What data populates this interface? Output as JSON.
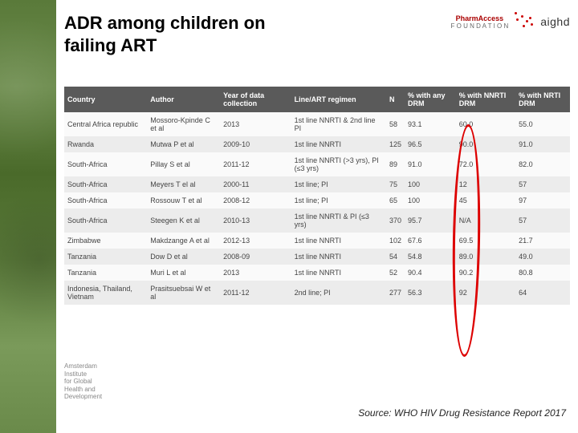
{
  "title": "ADR among children on\nfailing ART",
  "logos": {
    "pharm1": "PharmAccess",
    "pharm2": "F O U N D A T I O N",
    "aighd": "aighd"
  },
  "table": {
    "columns": [
      "Country",
      "Author",
      "Year of data collection",
      "Line/ART regimen",
      "N",
      "% with any DRM",
      "% with NNRTI DRM",
      "% with NRTI DRM"
    ],
    "rows": [
      [
        "Central Africa republic",
        "Mossoro-Kpinde C et al",
        "2013",
        "1st line NNRTI & 2nd line PI",
        "58",
        "93.1",
        "60.0",
        "55.0"
      ],
      [
        "Rwanda",
        "Mutwa P et al",
        "2009-10",
        "1st line NNRTI",
        "125",
        "96.5",
        "90.0",
        "91.0"
      ],
      [
        "South-Africa",
        "Pillay S et al",
        "2011-12",
        "1st line NNRTI (>3 yrs), PI (≤3 yrs)",
        "89",
        "91.0",
        "72.0",
        "82.0"
      ],
      [
        "South-Africa",
        "Meyers T el al",
        "2000-11",
        "1st line; PI",
        "75",
        "100",
        "12",
        "57"
      ],
      [
        "South-Africa",
        "Rossouw T et al",
        "2008-12",
        "1st line; PI",
        "65",
        "100",
        "45",
        "97"
      ],
      [
        "South-Africa",
        "Steegen K et al",
        "2010-13",
        "1st line NNRTI & PI (≤3 yrs)",
        "370",
        "95.7",
        "N/A",
        "57"
      ],
      [
        "Zimbabwe",
        "Makdzange A et al",
        "2012-13",
        "1st line NNRTI",
        "102",
        "67.6",
        "69.5",
        "21.7"
      ],
      [
        "Tanzania",
        "Dow D et al",
        "2008-09",
        "1st line NNRTI",
        "54",
        "54.8",
        "89.0",
        "49.0"
      ],
      [
        "Tanzania",
        "Muri L et al",
        "2013",
        "1st line NNRTI",
        "52",
        "90.4",
        "90.2",
        "80.8"
      ],
      [
        "Indonesia, Thailand, Vietnam",
        "Prasitsuebsai W et al",
        "2011-12",
        "2nd line; PI",
        "277",
        "56.3",
        "92",
        "64"
      ]
    ],
    "header_bg": "#5a5a5a",
    "header_color": "#ffffff",
    "row_alt_bg": "#ececec",
    "font_size": 9,
    "highlight_col_index": 5,
    "highlight_border_color": "#d00000"
  },
  "footnote": {
    "l1": "Amsterdam",
    "l2": "Institute",
    "l3": "for Global",
    "l4": "Health and",
    "l5": "Development"
  },
  "source": "Source: WHO HIV Drug Resistance Report 2017"
}
